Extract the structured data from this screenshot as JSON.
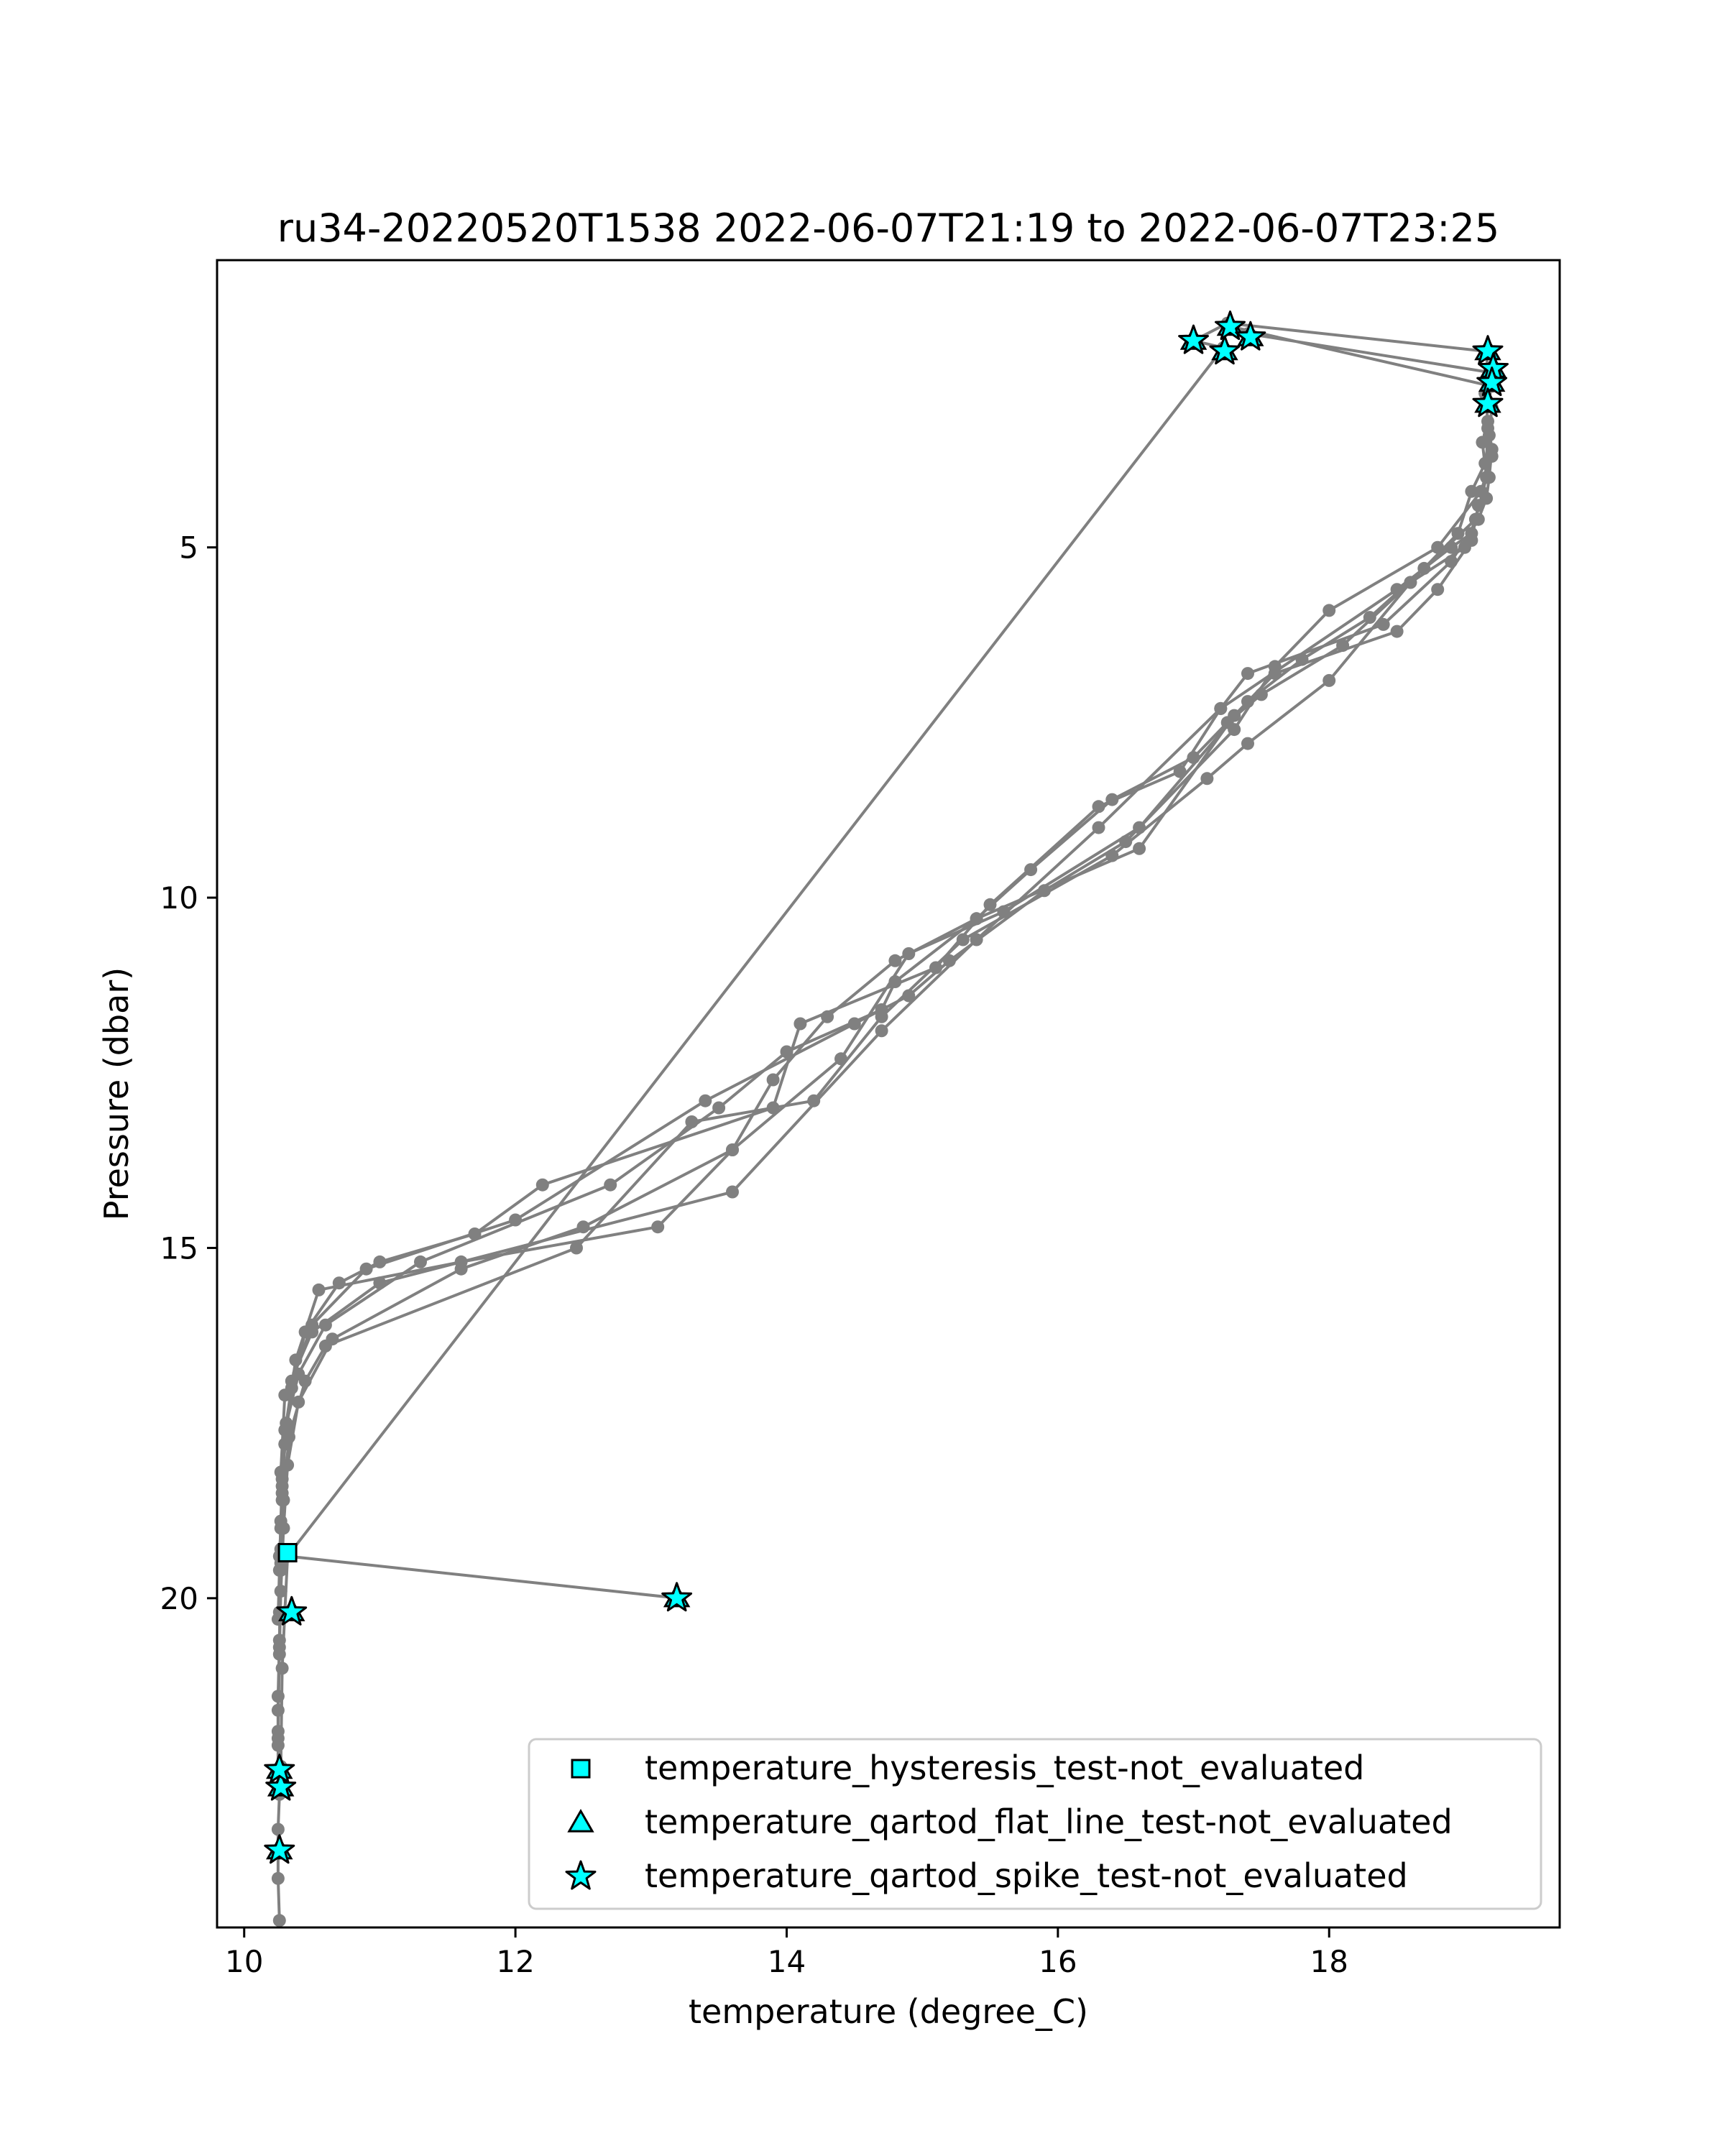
{
  "chart_data": {
    "type": "scatter",
    "title": "ru34-20220520T1538 2022-06-07T21:19 to 2022-06-07T23:25",
    "xlabel": "temperature (degree_C)",
    "ylabel": "Pressure (dbar)",
    "xlim": [
      9.8,
      19.7
    ],
    "ylim": [
      24.7,
      0.9
    ],
    "y_inverted": true,
    "x_ticks": [
      10,
      12,
      14,
      16,
      18
    ],
    "y_ticks": [
      5,
      10,
      15,
      20
    ],
    "grid": false,
    "legend_position": "lower-right",
    "colors": {
      "profile_line": "#808080",
      "marker_fill": "#00ffff",
      "marker_edge": "#000000",
      "axes": "#000000"
    },
    "profile_series": [
      {
        "temperature": [
          19.15,
          19.17,
          19.2,
          19.18,
          19.16,
          19.1,
          18.9,
          18.4,
          17.4,
          17.2,
          16.9,
          16.3,
          15.5,
          15.1,
          14.1,
          13.9,
          12.2,
          11.7,
          11.0,
          10.7,
          10.45,
          10.35,
          10.3,
          10.28,
          10.27,
          10.26
        ],
        "pressure": [
          2.8,
          3.2,
          3.6,
          4.0,
          4.3,
          4.6,
          5.2,
          6.1,
          6.8,
          7.3,
          8.2,
          8.7,
          10.1,
          11.0,
          11.8,
          13.0,
          14.1,
          14.8,
          15.2,
          15.5,
          16.2,
          17.0,
          17.8,
          18.5,
          19.0,
          19.4
        ]
      },
      {
        "temperature": [
          19.2,
          19.18,
          19.15,
          19.05,
          18.95,
          18.6,
          18.1,
          17.5,
          17.25,
          17.0,
          16.4,
          15.8,
          15.4,
          14.8,
          14.7,
          14.0,
          13.5,
          12.7,
          11.3,
          10.6,
          10.4,
          10.3,
          10.28,
          10.27,
          10.26,
          10.25
        ],
        "pressure": [
          3.0,
          3.4,
          3.8,
          4.2,
          4.8,
          5.5,
          6.4,
          7.1,
          7.5,
          8.0,
          8.6,
          9.6,
          10.3,
          11.2,
          11.6,
          12.2,
          13.0,
          14.1,
          15.2,
          16.1,
          16.8,
          17.6,
          18.3,
          18.9,
          19.6,
          20.3
        ]
      },
      {
        "temperature": [
          19.17,
          19.2,
          19.12,
          18.8,
          18.0,
          17.6,
          17.3,
          16.5,
          15.9,
          15.2,
          14.9,
          14.5,
          13.4,
          12.0,
          10.9,
          10.5,
          10.35,
          10.3,
          10.28,
          10.27,
          10.26,
          10.25,
          10.25,
          10.25
        ],
        "pressure": [
          3.3,
          3.7,
          4.2,
          5.0,
          5.9,
          6.7,
          7.6,
          9.2,
          9.9,
          10.9,
          11.4,
          11.8,
          12.9,
          14.6,
          15.3,
          16.1,
          16.9,
          17.8,
          18.6,
          19.6,
          20.6,
          21.4,
          22.0,
          22.5
        ]
      },
      {
        "temperature": [
          19.13,
          19.16,
          19.08,
          18.7,
          18.3,
          17.8,
          17.4,
          16.6,
          15.6,
          14.9,
          14.4,
          13.6,
          12.5,
          11.6,
          10.65,
          10.4,
          10.32,
          10.29,
          10.27,
          10.26,
          10.25,
          10.25
        ],
        "pressure": [
          3.5,
          4.0,
          4.6,
          5.3,
          6.0,
          6.6,
          7.2,
          9.0,
          10.2,
          10.8,
          12.3,
          13.6,
          14.7,
          15.3,
          16.3,
          17.2,
          18.1,
          19.0,
          19.9,
          20.8,
          21.6,
          22.1
        ]
      },
      {
        "temperature": [
          19.1,
          19.05,
          18.8,
          18.5,
          17.6,
          17.3,
          16.6,
          15.4,
          14.8,
          14.3,
          13.9,
          13.6,
          13.05,
          11.6,
          10.55,
          10.38,
          10.31,
          10.28,
          10.27,
          10.26
        ],
        "pressure": [
          4.4,
          4.9,
          5.6,
          6.2,
          6.8,
          7.4,
          9.3,
          10.3,
          10.9,
          11.7,
          12.6,
          13.6,
          14.7,
          15.2,
          15.6,
          16.6,
          17.5,
          18.4,
          19.3,
          20.2
        ]
      },
      {
        "temperature": [
          19.08,
          19.0,
          18.6,
          18.0,
          17.4,
          17.1,
          16.4,
          15.3,
          14.7,
          14.2,
          13.3,
          12.45,
          10.6,
          10.45,
          10.33,
          10.29,
          10.27,
          10.26,
          10.25
        ],
        "pressure": [
          4.6,
          5.0,
          5.5,
          6.9,
          7.8,
          8.3,
          9.4,
          10.6,
          11.7,
          12.9,
          13.2,
          15.0,
          16.4,
          16.9,
          17.7,
          18.6,
          19.5,
          20.7,
          21.9
        ]
      },
      {
        "temperature": [
          19.05,
          18.9,
          18.5,
          17.2,
          16.3,
          15.4,
          14.7,
          13.6,
          11.0,
          10.5,
          10.3,
          10.27
        ],
        "pressure": [
          4.8,
          5.0,
          5.6,
          7.3,
          9.0,
          10.6,
          11.9,
          14.2,
          15.5,
          16.2,
          17.1,
          18.2
        ]
      }
    ],
    "outlier_path": {
      "temperature": [
        10.26,
        10.25,
        10.25,
        10.26,
        10.27,
        10.28,
        10.3,
        10.32,
        13.2,
        13.2,
        10.32,
        17.22,
        17.0,
        17.25,
        19.15,
        19.18,
        17.4,
        17.28,
        19.2,
        19.15
      ],
      "pressure": [
        24.6,
        24.0,
        23.3,
        22.8,
        22.4,
        21.0,
        20.2,
        19.4,
        20.0,
        20.0,
        19.4,
        2.15,
        2.05,
        1.8,
        2.2,
        2.5,
        1.95,
        1.85,
        2.7,
        2.8
      ]
    },
    "legend_series": [
      {
        "name": "temperature_hysteresis_test-not_evaluated",
        "marker": "square",
        "temperature": [
          10.32
        ],
        "pressure": [
          19.35
        ]
      },
      {
        "name": "temperature_qartod_flat_line_test-not_evaluated",
        "marker": "triangle",
        "temperature": [
          10.26,
          10.27,
          10.26,
          13.19,
          10.35,
          17.0,
          17.23,
          17.27,
          17.42,
          19.17,
          19.21,
          19.2,
          19.17
        ],
        "pressure": [
          23.6,
          22.7,
          22.45,
          20.0,
          20.2,
          2.05,
          2.2,
          1.85,
          2.0,
          2.2,
          2.45,
          2.65,
          2.95
        ]
      },
      {
        "name": "temperature_qartod_spike_test-not_evaluated",
        "marker": "star",
        "temperature": [
          10.26,
          10.27,
          10.26,
          13.19,
          10.35,
          17.0,
          17.23,
          17.27,
          17.42,
          19.17,
          19.21,
          19.2,
          19.17
        ],
        "pressure": [
          23.6,
          22.7,
          22.45,
          20.0,
          20.2,
          2.05,
          2.2,
          1.85,
          2.0,
          2.2,
          2.45,
          2.65,
          2.95
        ]
      }
    ]
  }
}
